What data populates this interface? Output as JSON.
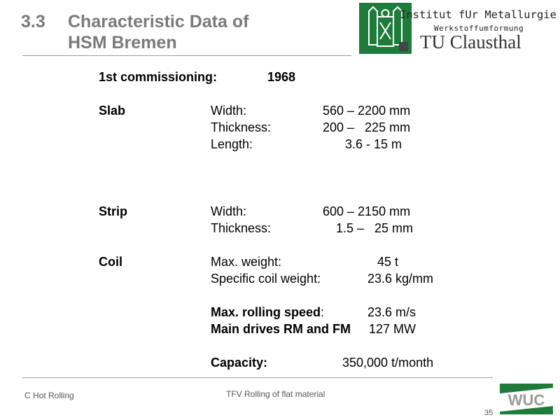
{
  "header": {
    "number": "3.3",
    "title_line1": "Characteristic Data of",
    "title_line2": "HSM Bremen",
    "institute_line1": "Institut fUr Metallurgie",
    "institute_line2": "Werkstoffumformung",
    "university": "TU Clausthal"
  },
  "content": {
    "commissioning_label": "1st commissioning:",
    "commissioning_value": "1968",
    "slab": {
      "label": "Slab",
      "width_label": "Width:",
      "width_value": "560 – 2200 mm",
      "thickness_label": "Thickness:",
      "thickness_value": "200 –   225 mm",
      "length_label": "Length:",
      "length_value": "3.6 - 15 m"
    },
    "strip": {
      "label": "Strip",
      "width_label": "Width:",
      "width_value": "600 – 2150 mm",
      "thickness_label": "Thickness:",
      "thickness_value": "1.5 –   25 mm"
    },
    "coil": {
      "label": "Coil",
      "max_weight_label": "Max. weight:",
      "max_weight_value": "45 t",
      "specific_label": "Specific coil weight:",
      "specific_value": "23.6 kg/mm"
    },
    "max_speed_label": "Max. rolling speed",
    "max_speed_colon": ":",
    "max_speed_value": "23.6 m/s",
    "main_drives_label": "Main drives RM and FM",
    "main_drives_value": "127 MW",
    "capacity_label": "Capacity:",
    "capacity_value": "350,000 t/month"
  },
  "footer": {
    "left": "C Hot Rolling",
    "center": "TFV Rolling of flat material",
    "page": "35",
    "logo_text": "WUC"
  },
  "colors": {
    "green": "#1e7b3a",
    "title_gray": "#7a7a7a"
  }
}
